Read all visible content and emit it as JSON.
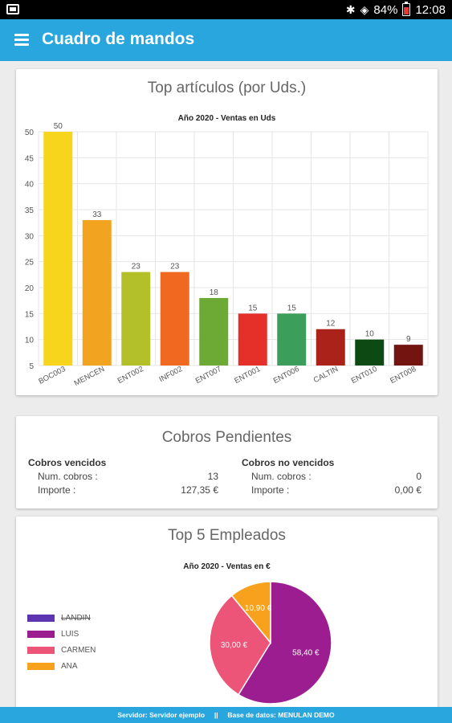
{
  "status_bar": {
    "battery": "84%",
    "time": "12:08"
  },
  "app_bar": {
    "title": "Cuadro de mandos"
  },
  "top_articles": {
    "title": "Top artículos (por Uds.)",
    "chart_data": {
      "type": "bar",
      "title": "Año 2020 - Ventas en Uds",
      "categories": [
        "BOC003",
        "MENCEN",
        "ENT002",
        "INF002",
        "ENT007",
        "ENT001",
        "ENT006",
        "CALTIN",
        "ENT010",
        "ENT008"
      ],
      "values": [
        50,
        33,
        23,
        23,
        18,
        15,
        15,
        12,
        10,
        9
      ],
      "colors": [
        "#f7d51d",
        "#f2a31f",
        "#b3c02a",
        "#ef6a20",
        "#6da935",
        "#e5302a",
        "#3c9e5b",
        "#ab221b",
        "#0d4a13",
        "#741411"
      ],
      "ylim": [
        5,
        50
      ],
      "yticks": [
        "50",
        "45",
        "40",
        "35",
        "30",
        "25",
        "20",
        "15",
        "10",
        "5"
      ],
      "grid": true
    }
  },
  "pending": {
    "title": "Cobros Pendientes",
    "overdue": {
      "heading": "Cobros vencidos",
      "count_label": "Num. cobros :",
      "count_value": "13",
      "amount_label": "Importe :",
      "amount_value": "127,35 €"
    },
    "not_overdue": {
      "heading": "Cobros no vencidos",
      "count_label": "Num. cobros :",
      "count_value": "0",
      "amount_label": "Importe :",
      "amount_value": "0,00 €"
    }
  },
  "employees": {
    "title": "Top 5 Empleados",
    "chart_data": {
      "type": "pie",
      "title": "Año 2020 - Ventas en €",
      "legend": [
        "LANDIN",
        "LUIS",
        "CARMEN",
        "ANA"
      ],
      "legend_colors": [
        "#5e35b1",
        "#9c1d8f",
        "#ec5577",
        "#f7a11c"
      ],
      "legend_struck": [
        true,
        false,
        false,
        false
      ],
      "slices": [
        {
          "name": "LUIS",
          "value": 58.4,
          "label": "58,40 €",
          "color": "#9c1d8f"
        },
        {
          "name": "CARMEN",
          "value": 30.0,
          "label": "30,00 €",
          "color": "#ec5577"
        },
        {
          "name": "ANA",
          "value": 10.9,
          "label": "10,90 €",
          "color": "#f7a11c"
        }
      ]
    }
  },
  "footer": {
    "text": "Servidor: Servidor ejemplo     ||     Base de datos: MENULAN DEMO"
  }
}
